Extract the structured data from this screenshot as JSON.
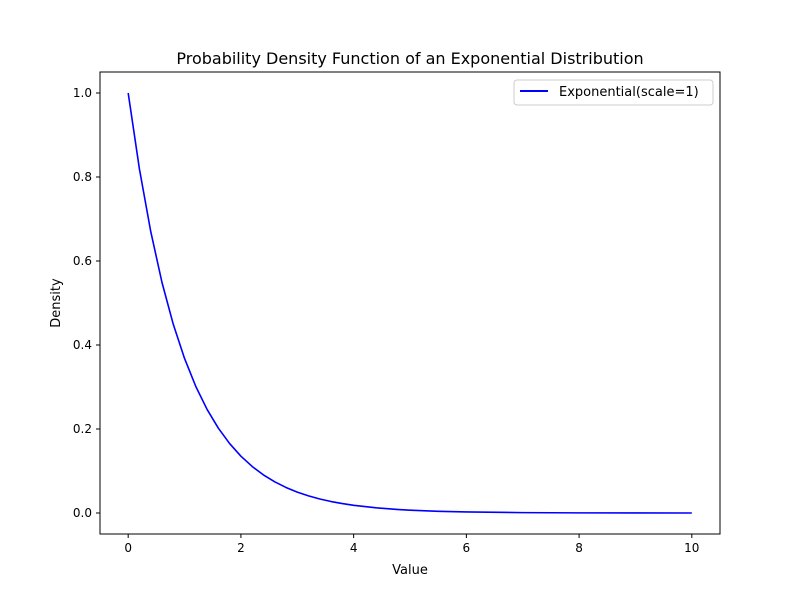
{
  "chart_data": {
    "type": "line",
    "title": "Probability Density Function of an Exponential Distribution",
    "xlabel": "Value",
    "ylabel": "Density",
    "xlim": [
      -0.5,
      10.5
    ],
    "ylim": [
      -0.05,
      1.05
    ],
    "xticks": [
      0,
      2,
      4,
      6,
      8,
      10
    ],
    "xtick_labels": [
      "0",
      "2",
      "4",
      "6",
      "8",
      "10"
    ],
    "yticks": [
      0.0,
      0.2,
      0.4,
      0.6,
      0.8,
      1.0
    ],
    "ytick_labels": [
      "0.0",
      "0.2",
      "0.4",
      "0.6",
      "0.8",
      "1.0"
    ],
    "grid": false,
    "legend_position": "top-right",
    "series": [
      {
        "name": "Exponential(scale=1)",
        "color": "#0000ff",
        "x": [
          0,
          0.2,
          0.4,
          0.6,
          0.8,
          1.0,
          1.2,
          1.4,
          1.6,
          1.8,
          2.0,
          2.2,
          2.4,
          2.6,
          2.8,
          3.0,
          3.2,
          3.4,
          3.6,
          3.8,
          4.0,
          4.4,
          4.8,
          5.0,
          5.5,
          6,
          7,
          8,
          9,
          10
        ],
        "y": [
          1,
          0.8187,
          0.6703,
          0.5488,
          0.4493,
          0.3679,
          0.3012,
          0.2466,
          0.2019,
          0.1653,
          0.1353,
          0.1108,
          0.0907,
          0.0743,
          0.0608,
          0.0498,
          0.0408,
          0.0334,
          0.0273,
          0.0224,
          0.0183,
          0.0123,
          0.0082,
          0.0067,
          0.0041,
          0.0025,
          0.0009,
          0.0003,
          0.0001,
          0.0
        ]
      }
    ]
  }
}
